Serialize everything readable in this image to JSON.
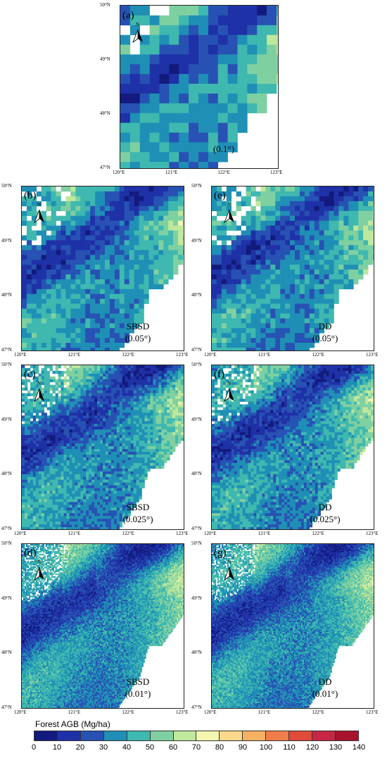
{
  "panels": [
    {
      "id": "a",
      "label": "(a)",
      "method": "",
      "resolution": "(0.1°)"
    },
    {
      "id": "b",
      "label": "(b)",
      "method": "SBSD",
      "resolution": "(0.05°)"
    },
    {
      "id": "e",
      "label": "(e)",
      "method": "DD",
      "resolution": "(0.05°)"
    },
    {
      "id": "c",
      "label": "(c)",
      "method": "SBSD",
      "resolution": "(0.025°)"
    },
    {
      "id": "f",
      "label": "(f)",
      "method": "DD",
      "resolution": "(0.025°)"
    },
    {
      "id": "d",
      "label": "(d)",
      "method": "SBSD",
      "resolution": "(0.01°)"
    },
    {
      "id": "g",
      "label": "(g)",
      "method": "DD",
      "resolution": "(0.01°)"
    }
  ],
  "axes": {
    "lat_ticks": [
      "50°N",
      "49°N",
      "48°N",
      "47°N"
    ],
    "lon_ticks": [
      "120°E",
      "121°E",
      "122°E",
      "123°E"
    ]
  },
  "north_arrow": {
    "label": "N",
    "icon": "north-arrow-icon"
  },
  "colorbar": {
    "title": "Forest AGB (Mg/ha)",
    "ticks": [
      "0",
      "10",
      "20",
      "30",
      "40",
      "50",
      "60",
      "70",
      "80",
      "90",
      "100",
      "110",
      "120",
      "130",
      "140"
    ],
    "colors": [
      "#121a7d",
      "#1e31a6",
      "#2752b3",
      "#1f8fb5",
      "#3fb8b0",
      "#7fd0a1",
      "#c0e89d",
      "#f3f6b0",
      "#f8d88a",
      "#f6b062",
      "#ef7d4b",
      "#e04a3a",
      "#c62744",
      "#a8122c",
      "#7e0a1c"
    ]
  }
}
